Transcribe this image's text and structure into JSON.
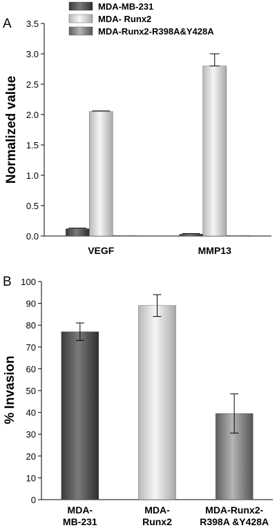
{
  "chart_data": [
    {
      "panel_label": "A",
      "type": "bar",
      "categories": [
        "VEGF",
        "MMP13"
      ],
      "series": [
        {
          "name": "MDA-MB-231",
          "values": [
            0.12,
            0.03
          ],
          "errors": [
            0.01,
            0.01
          ],
          "color": "#555555"
        },
        {
          "name": "MDA- Runx2",
          "values": [
            2.05,
            2.8
          ],
          "errors": [
            0.01,
            0.2
          ],
          "color": "#d9d9d9"
        },
        {
          "name": "MDA-Runx2-R398A&Y428A",
          "values": [
            0.005,
            0.005
          ],
          "errors": [
            0,
            0
          ],
          "color": "#8a8a8a"
        }
      ],
      "ylabel": "Normalized value",
      "ylim": [
        0,
        3.5
      ],
      "yticks": [
        "0.0",
        "0.5",
        "1.0",
        "1.5",
        "2.0",
        "2.5",
        "3.0",
        "3.5"
      ],
      "legend_position": "top-left",
      "grid": false
    },
    {
      "panel_label": "B",
      "type": "bar",
      "categories": [
        {
          "lines": [
            "MDA-",
            "MB-231"
          ]
        },
        {
          "lines": [
            "MDA-",
            "Runx2"
          ]
        },
        {
          "lines": [
            "MDA-Runx2-",
            "R398A &Y428A"
          ]
        }
      ],
      "values": [
        77,
        89,
        39.5
      ],
      "errors": [
        4,
        5,
        9
      ],
      "colors": [
        "#555555",
        "#d9d9d9",
        "#8a8a8a"
      ],
      "ylabel": "% Invasion",
      "ylim": [
        0,
        100
      ],
      "yticks": [
        "0",
        "10",
        "20",
        "30",
        "40",
        "50",
        "60",
        "70",
        "80",
        "90",
        "100"
      ],
      "grid": false
    }
  ]
}
